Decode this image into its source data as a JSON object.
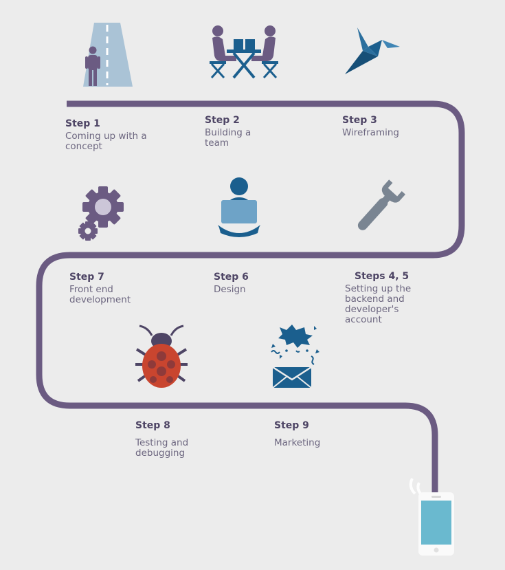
{
  "colors": {
    "path": "#6b5b82",
    "title": "#4e4565",
    "text": "#6d6780",
    "purple": "#6b5b82",
    "blue": "#1b5f8e",
    "lightblue": "#aac3d6",
    "ladybug_red": "#c9452f",
    "phone_screen": "#6ab9cf"
  },
  "steps": [
    {
      "id": "step1",
      "title": "Step 1",
      "desc": "Coming up with a\nconcept",
      "icon": "road-person-icon"
    },
    {
      "id": "step2",
      "title": "Step 2",
      "desc": "Building a\nteam",
      "icon": "team-meeting-icon"
    },
    {
      "id": "step3",
      "title": "Step 3",
      "desc": "Wireframing",
      "icon": "origami-bird-icon"
    },
    {
      "id": "steps45",
      "title": "Steps 4, 5",
      "desc": "Setting up the\nbackend and\ndeveloper's\naccount",
      "icon": "wrench-icon"
    },
    {
      "id": "step6",
      "title": "Step 6",
      "desc": "Design",
      "icon": "laptop-person-icon"
    },
    {
      "id": "step7",
      "title": "Step 7",
      "desc": "Front end\ndevelopment",
      "icon": "gears-icon"
    },
    {
      "id": "step8",
      "title": "Step 8",
      "desc": "Testing and\ndebugging",
      "icon": "ladybug-icon"
    },
    {
      "id": "step9",
      "title": "Step 9",
      "desc": "Marketing",
      "icon": "envelope-burst-icon"
    }
  ],
  "end_icon": "smartphone-icon"
}
